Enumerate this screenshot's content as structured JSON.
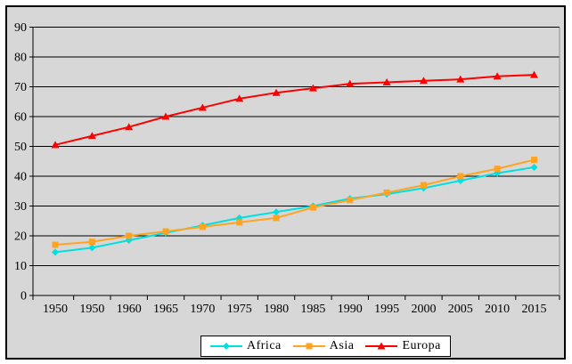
{
  "chart_data": {
    "type": "line",
    "title": "",
    "xlabel": "",
    "ylabel": "",
    "categories": [
      "1950",
      "1950",
      "1960",
      "1965",
      "1970",
      "1975",
      "1980",
      "1985",
      "1990",
      "1995",
      "2000",
      "2005",
      "2010",
      "2015"
    ],
    "yticks": [
      0,
      10,
      20,
      30,
      40,
      50,
      60,
      70,
      80,
      90
    ],
    "ylim": [
      0,
      90
    ],
    "grid": "horizontal-black-lines",
    "legend_position": "bottom-center",
    "plot_bg": "#d7d7d7",
    "axis_color": "#000000",
    "right_border_color": "#8c8c8c",
    "series": [
      {
        "name": "Africa",
        "color": "#00e0e0",
        "marker": "diamond",
        "values": [
          14.5,
          16,
          18.5,
          21,
          23.5,
          26,
          28,
          30,
          32.5,
          34,
          36,
          38.5,
          41,
          43
        ]
      },
      {
        "name": "Asia",
        "color": "#ffa321",
        "marker": "square",
        "values": [
          17,
          18,
          20,
          21.5,
          23,
          24.5,
          26,
          29.5,
          32,
          34.5,
          37,
          40,
          42.5,
          45.5
        ]
      },
      {
        "name": "Europa",
        "color": "#ff0000",
        "marker": "triangle",
        "values": [
          50.5,
          53.5,
          56.5,
          60,
          63,
          66,
          68,
          69.5,
          71,
          71.5,
          72,
          72.5,
          73.5,
          74
        ]
      }
    ]
  }
}
